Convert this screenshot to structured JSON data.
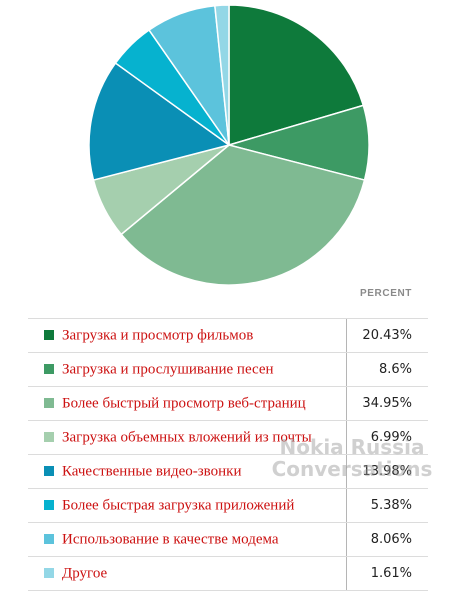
{
  "chart_data": {
    "type": "pie",
    "value_header": "PERCENT",
    "series": [
      {
        "label": "Загрузка и просмотр фильмов",
        "value_text": "20.43%",
        "value": 20.43,
        "color": "#0e7a3b"
      },
      {
        "label": "Загрузка и прослушивание песен",
        "value_text": "8.6%",
        "value": 8.6,
        "color": "#3d9a64"
      },
      {
        "label": "Более быстрый просмотр веб-страниц",
        "value_text": "34.95%",
        "value": 34.95,
        "color": "#7fba92"
      },
      {
        "label": "Загрузка объемных вложений из почты",
        "value_text": "6.99%",
        "value": 6.99,
        "color": "#a5cfae"
      },
      {
        "label": "Качественные видео-звонки",
        "value_text": "13.98%",
        "value": 13.98,
        "color": "#0a8fb5"
      },
      {
        "label": "Более быстрая загрузка приложений",
        "value_text": "5.38%",
        "value": 5.38,
        "color": "#06b2cf"
      },
      {
        "label": "Использование в качестве модема",
        "value_text": "8.06%",
        "value": 8.06,
        "color": "#5cc3dc"
      },
      {
        "label": "Другое",
        "value_text": "1.61%",
        "value": 1.61,
        "color": "#93d7e6"
      }
    ]
  },
  "watermark": {
    "line1": "Nokia  Russia",
    "line2": "Conversations"
  }
}
